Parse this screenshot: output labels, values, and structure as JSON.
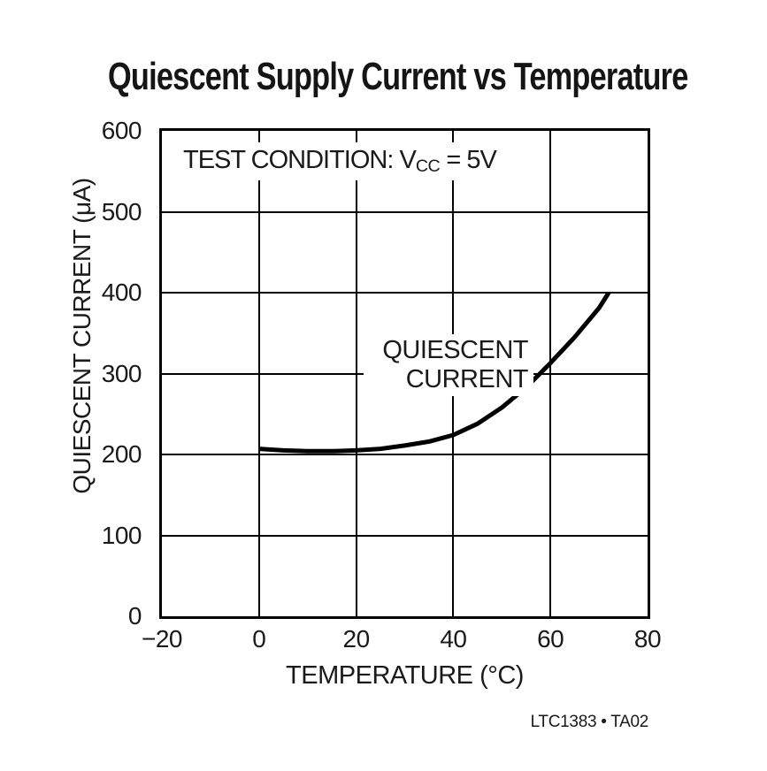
{
  "page": {
    "title": "Quiescent Supply Current vs Temperature",
    "footer": "LTC1383 • TA02"
  },
  "annotations": {
    "test_condition": {
      "prefix": "TEST CONDITION: V",
      "subscript": "CC",
      "suffix": " = 5V"
    },
    "curve_label": {
      "line1": "QUIESCENT",
      "line2": "CURRENT"
    }
  },
  "chart_data": {
    "type": "line",
    "title": "Quiescent Supply Current vs Temperature",
    "xlabel": "TEMPERATURE (°C)",
    "ylabel": "QUIESCENT CURRENT (μA)",
    "xlim": [
      -20,
      80
    ],
    "ylim": [
      0,
      600
    ],
    "x_ticks": [
      -20,
      0,
      20,
      40,
      60,
      80
    ],
    "x_tick_labels": [
      "−20",
      "0",
      "20",
      "40",
      "60",
      "80"
    ],
    "y_ticks": [
      0,
      100,
      200,
      300,
      400,
      500,
      600
    ],
    "y_tick_labels": [
      "0",
      "100",
      "200",
      "300",
      "400",
      "500",
      "600"
    ],
    "grid": true,
    "legend_position": "none",
    "line_color": "#000000",
    "line_width": 5,
    "series": [
      {
        "name": "QUIESCENT CURRENT",
        "x": [
          0,
          5,
          10,
          15,
          20,
          25,
          30,
          35,
          40,
          45,
          50,
          55,
          60,
          65,
          70,
          72
        ],
        "y": [
          207,
          205,
          204,
          204,
          205,
          207,
          211,
          216,
          224,
          238,
          258,
          283,
          313,
          345,
          381,
          400
        ]
      }
    ],
    "annotations": [
      "TEST CONDITION: VCC = 5V",
      "QUIESCENT CURRENT"
    ]
  }
}
